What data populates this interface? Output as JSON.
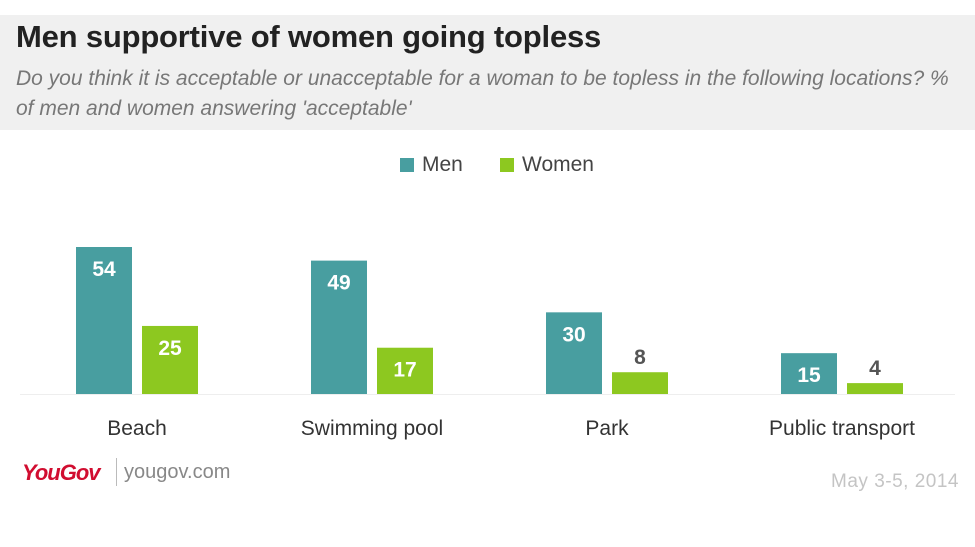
{
  "header": {
    "title": "Men supportive of women going topless",
    "subtitle": "Do you think it is acceptable or unacceptable for a woman to be topless in the following locations? % of men and women answering 'acceptable'"
  },
  "colors": {
    "men": "#489ea0",
    "women": "#8dc820",
    "label_inside": "#ffffff",
    "label_outside": "#555555",
    "category": "#333333",
    "baseline": "#eeeeee"
  },
  "chart_data": {
    "type": "bar",
    "title": "Men supportive of women going topless",
    "subtitle": "Do you think it is acceptable or unacceptable for a woman to be topless in the following locations? % of men and women answering 'acceptable'",
    "categories": [
      "Beach",
      "Swimming pool",
      "Park",
      "Public transport"
    ],
    "series": [
      {
        "name": "Men",
        "values": [
          54,
          49,
          30,
          15
        ]
      },
      {
        "name": "Women",
        "values": [
          25,
          17,
          8,
          4
        ]
      }
    ],
    "xlabel": "",
    "ylabel": "",
    "ylim": [
      0,
      54
    ],
    "grid": false,
    "legend": "top-center",
    "data_labels": true
  },
  "footer": {
    "brand": "YouGov",
    "site": "yougov.com",
    "date": "May 3-5, 2014"
  }
}
